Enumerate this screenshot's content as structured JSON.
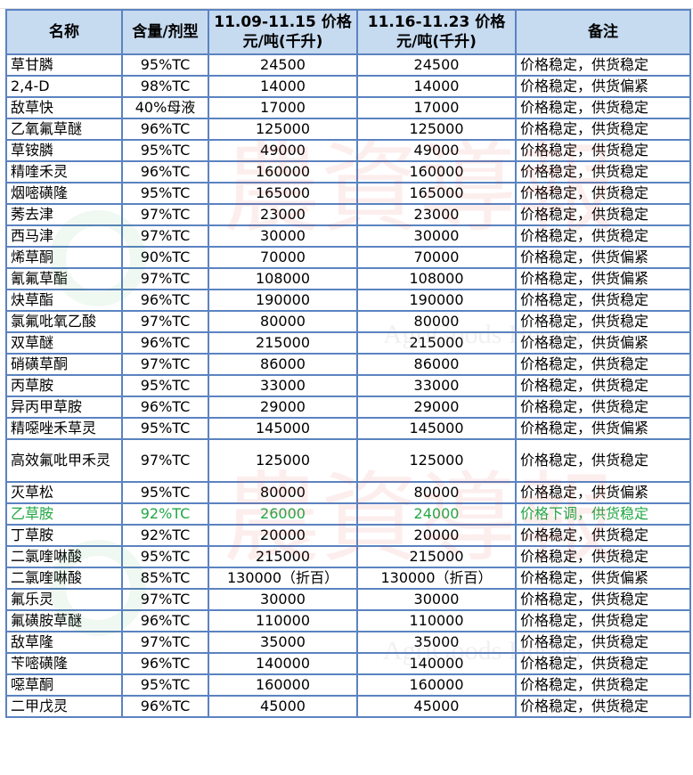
{
  "headers": [
    "名称",
    "含量/剂型",
    "11.09-11.15 价格元/吨(千升)",
    "11.16-11.23 价格元/吨(千升)",
    "备注"
  ],
  "watermark": "AgriGoods Herald",
  "highlight_color": "#22a845",
  "rows": [
    [
      "草甘膦",
      "95%TC",
      "24500",
      "24500",
      "价格稳定，供货稳定"
    ],
    [
      "2,4-D",
      "98%TC",
      "14000",
      "14000",
      "价格稳定，供货偏紧"
    ],
    [
      "敌草快",
      "40%母液",
      "17000",
      "17000",
      "价格稳定，供货稳定"
    ],
    [
      "乙氧氟草醚",
      "96%TC",
      "125000",
      "125000",
      "价格稳定，供货稳定"
    ],
    [
      "草铵膦",
      "95%TC",
      "49000",
      "49000",
      "价格稳定，供货稳定"
    ],
    [
      "精喹禾灵",
      "96%TC",
      "160000",
      "160000",
      "价格稳定，供货稳定"
    ],
    [
      "烟嘧磺隆",
      "95%TC",
      "165000",
      "165000",
      "价格稳定，供货稳定"
    ],
    [
      "莠去津",
      "97%TC",
      "23000",
      "23000",
      "价格稳定，供货稳定"
    ],
    [
      "西马津",
      "97%TC",
      "30000",
      "30000",
      "价格稳定，供货稳定"
    ],
    [
      "烯草酮",
      "90%TC",
      "70000",
      "70000",
      "价格稳定，供货偏紧"
    ],
    [
      "氰氟草酯",
      "97%TC",
      "108000",
      "108000",
      "价格稳定，供货偏紧"
    ],
    [
      "炔草酯",
      "96%TC",
      "190000",
      "190000",
      "价格稳定，供货稳定"
    ],
    [
      "氯氟吡氧乙酸",
      "97%TC",
      "80000",
      "80000",
      "价格稳定，供货稳定"
    ],
    [
      "双草醚",
      "96%TC",
      "215000",
      "215000",
      "价格稳定，供货偏紧"
    ],
    [
      "硝磺草酮",
      "97%TC",
      "86000",
      "86000",
      "价格稳定，供货稳定"
    ],
    [
      "丙草胺",
      "95%TC",
      "33000",
      "33000",
      "价格稳定，供货稳定"
    ],
    [
      "异丙甲草胺",
      "96%TC",
      "29000",
      "29000",
      "价格稳定，供货稳定"
    ],
    [
      "精噁唑禾草灵",
      "95%TC",
      "145000",
      "145000",
      "价格稳定，供货偏紧"
    ],
    [
      "高效氟吡甲禾灵",
      "97%TC",
      "125000",
      "125000",
      "价格稳定，供货稳定"
    ],
    [
      "灭草松",
      "95%TC",
      "80000",
      "80000",
      "价格稳定，供货偏紧"
    ],
    [
      "乙草胺",
      "92%TC",
      "26000",
      "24000",
      "价格下调，供货稳定"
    ],
    [
      "丁草胺",
      "92%TC",
      "20000",
      "20000",
      "价格稳定，供货稳定"
    ],
    [
      "二氯喹啉酸",
      "95%TC",
      "215000",
      "215000",
      "价格稳定，供货稳定"
    ],
    [
      "二氯喹啉酸",
      "85%TC",
      "130000（折百）",
      "130000（折百）",
      "价格稳定，供货偏紧"
    ],
    [
      "氟乐灵",
      "97%TC",
      "30000",
      "30000",
      "价格稳定，供货稳定"
    ],
    [
      "氟磺胺草醚",
      "96%TC",
      "110000",
      "110000",
      "价格稳定，供货稳定"
    ],
    [
      "敌草隆",
      "97%TC",
      "35000",
      "35000",
      "价格稳定，供货稳定"
    ],
    [
      "苄嘧磺隆",
      "96%TC",
      "140000",
      "140000",
      "价格稳定，供货稳定"
    ],
    [
      "噁草酮",
      "95%TC",
      "160000",
      "160000",
      "价格稳定，供货稳定"
    ],
    [
      "二甲戊灵",
      "96%TC",
      "45000",
      "45000",
      "价格稳定，供货稳定"
    ]
  ]
}
